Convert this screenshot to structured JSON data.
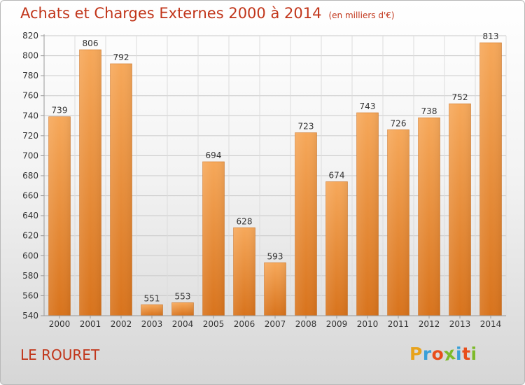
{
  "header": {
    "title": "Achats et Charges Externes 2000 à 2014",
    "subtitle": "(en milliers d'€)"
  },
  "footer": {
    "place": "LE ROURET",
    "logo": [
      "P",
      "r",
      "o",
      "x",
      "i",
      "t",
      "i"
    ],
    "logo_colors": [
      "#e8a31c",
      "#3aa0d8",
      "#e84e1b",
      "#7dba2a",
      "#3aa0d8",
      "#e84e1b",
      "#7dba2a"
    ]
  },
  "chart_data": {
    "type": "bar",
    "categories": [
      "2000",
      "2001",
      "2002",
      "2003",
      "2004",
      "2005",
      "2006",
      "2007",
      "2008",
      "2009",
      "2010",
      "2011",
      "2012",
      "2013",
      "2014"
    ],
    "values": [
      739,
      806,
      792,
      551,
      553,
      694,
      628,
      593,
      723,
      674,
      743,
      726,
      738,
      752,
      813
    ],
    "ylim": [
      540,
      820
    ],
    "yticks": [
      540,
      560,
      580,
      600,
      620,
      640,
      660,
      680,
      700,
      720,
      740,
      760,
      780,
      800,
      820
    ],
    "grid": true,
    "bar_color": "#f0a050",
    "bar_color_dark": "#d97a1f"
  }
}
